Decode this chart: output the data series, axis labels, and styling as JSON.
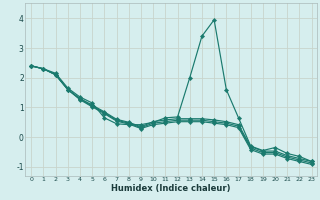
{
  "xlabel": "Humidex (Indice chaleur)",
  "bg_color": "#d6eeee",
  "line_color": "#1a7a6e",
  "grid_color": "#c0d8d0",
  "xlim": [
    -0.5,
    23.4
  ],
  "ylim": [
    -1.3,
    4.5
  ],
  "xticks": [
    0,
    1,
    2,
    3,
    4,
    5,
    6,
    7,
    8,
    9,
    10,
    11,
    12,
    13,
    14,
    15,
    16,
    17,
    18,
    19,
    20,
    21,
    22,
    23
  ],
  "yticks": [
    -1,
    0,
    1,
    2,
    3,
    4
  ],
  "series1_x": [
    0,
    1,
    2,
    3,
    4,
    5,
    6,
    7,
    8,
    9,
    10,
    11,
    12,
    13,
    14,
    15,
    16,
    17,
    18,
    19,
    20,
    21,
    22,
    23
  ],
  "series1_y": [
    2.4,
    2.3,
    2.15,
    1.65,
    1.35,
    1.15,
    0.65,
    0.45,
    0.42,
    0.42,
    0.5,
    0.65,
    0.68,
    2.0,
    3.4,
    3.95,
    1.6,
    0.65,
    -0.3,
    -0.45,
    -0.35,
    -0.55,
    -0.65,
    -0.82
  ],
  "series2_x": [
    0,
    1,
    2,
    3,
    4,
    5,
    6,
    7,
    8,
    9,
    10,
    11,
    12,
    13,
    14,
    15,
    16,
    17,
    18,
    19,
    20,
    21,
    22,
    23
  ],
  "series2_y": [
    2.4,
    2.3,
    2.1,
    1.6,
    1.3,
    1.08,
    0.85,
    0.6,
    0.5,
    0.35,
    0.52,
    0.58,
    0.62,
    0.62,
    0.62,
    0.58,
    0.52,
    0.42,
    -0.32,
    -0.47,
    -0.47,
    -0.62,
    -0.72,
    -0.82
  ],
  "series3_x": [
    0,
    1,
    2,
    3,
    4,
    5,
    6,
    7,
    8,
    9,
    10,
    11,
    12,
    13,
    14,
    15,
    16,
    17,
    18,
    19,
    20,
    21,
    22,
    23
  ],
  "series3_y": [
    2.4,
    2.3,
    2.1,
    1.6,
    1.28,
    1.05,
    0.82,
    0.57,
    0.47,
    0.32,
    0.47,
    0.52,
    0.57,
    0.57,
    0.57,
    0.52,
    0.47,
    0.37,
    -0.37,
    -0.52,
    -0.52,
    -0.67,
    -0.77,
    -0.87
  ],
  "series4_x": [
    0,
    1,
    2,
    3,
    4,
    5,
    6,
    7,
    8,
    9,
    10,
    11,
    12,
    13,
    14,
    15,
    16,
    17,
    18,
    19,
    20,
    21,
    22,
    23
  ],
  "series4_y": [
    2.4,
    2.3,
    2.1,
    1.6,
    1.26,
    1.02,
    0.79,
    0.54,
    0.44,
    0.29,
    0.42,
    0.47,
    0.52,
    0.52,
    0.52,
    0.47,
    0.42,
    0.32,
    -0.42,
    -0.57,
    -0.57,
    -0.72,
    -0.82,
    -0.92
  ]
}
